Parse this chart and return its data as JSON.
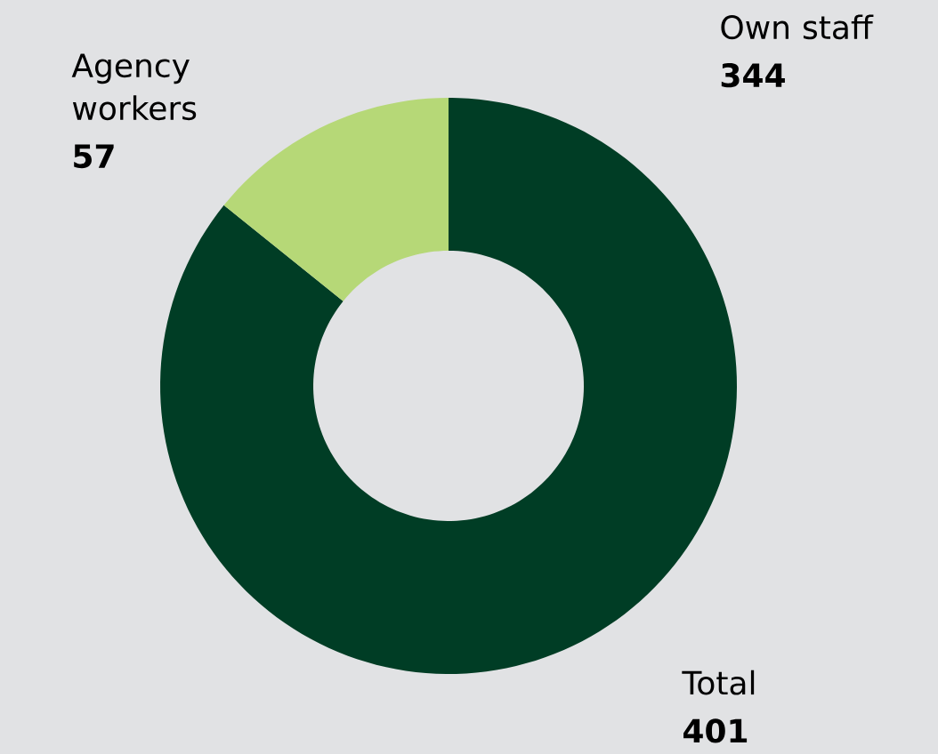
{
  "chart_data": {
    "type": "donut",
    "categories": [
      "Own staff",
      "Agency workers"
    ],
    "values": [
      344,
      57
    ],
    "colors": [
      "#003d25",
      "#b6d877"
    ],
    "value_labels": [
      "344",
      "57"
    ],
    "annotations": [
      "Total",
      "401"
    ]
  }
}
